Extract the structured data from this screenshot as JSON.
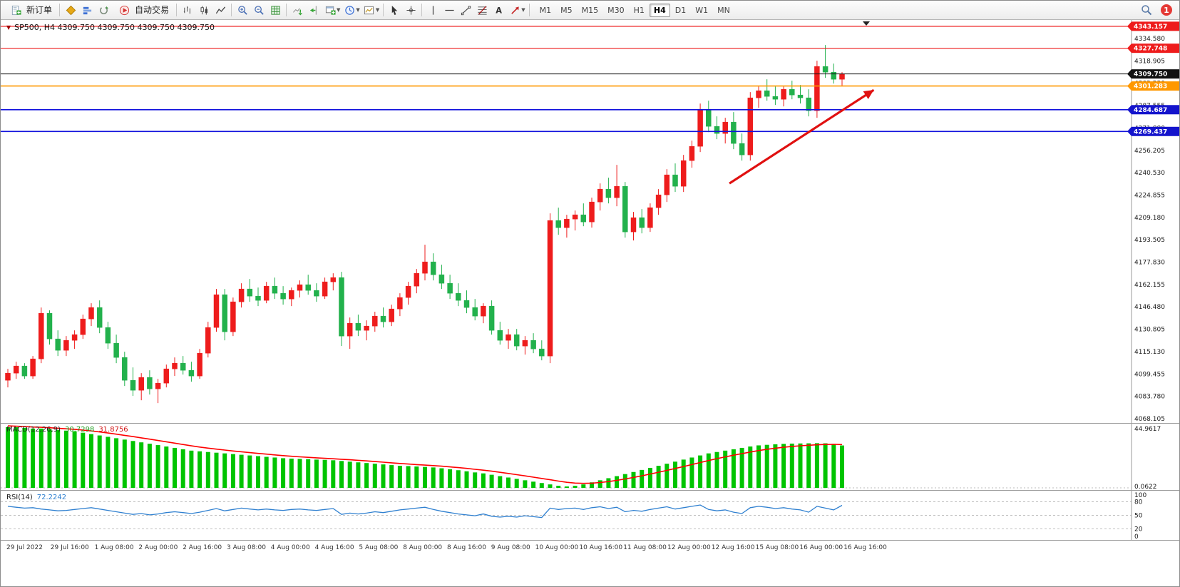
{
  "toolbar": {
    "new_order_label": "新订单",
    "autotrade_label": "自动交易",
    "timeframes": [
      "M1",
      "M5",
      "M15",
      "M30",
      "H1",
      "H4",
      "D1",
      "W1",
      "MN"
    ],
    "active_timeframe": "H4",
    "notification_count": "1"
  },
  "chart_data": {
    "type": "candlestick",
    "symbol": "SP500",
    "timeframe": "H4",
    "ohlc_title": "SP500, H4  4309.750 4309.750 4309.750 4309.750",
    "colors": {
      "up": "#ee1c1c",
      "down": "#22b14c",
      "macd_bar": "#00c400",
      "macd_signal": "#ff0000",
      "rsi": "#2f80d0",
      "line_red": "#ee1c1c",
      "line_orange": "#ff9800",
      "line_blue": "#1212dd",
      "current_price_line": "#111111"
    },
    "price_axis": {
      "ylim": [
        4065.08,
        4346.08
      ],
      "ticks": [
        4334.58,
        4318.905,
        4303.23,
        4287.555,
        4271.88,
        4256.205,
        4240.53,
        4224.855,
        4209.18,
        4193.505,
        4177.83,
        4162.155,
        4146.48,
        4130.805,
        4115.13,
        4099.455,
        4083.78,
        4068.105
      ]
    },
    "hlines": [
      {
        "name": "resistance-upper",
        "price": 4343.157,
        "color": "#ee1c1c",
        "badge": "#ee1c1c",
        "width": 1.2
      },
      {
        "name": "resistance-lower",
        "price": 4327.748,
        "color": "#ee1c1c",
        "badge": "#ee1c1c",
        "width": 1.2
      },
      {
        "name": "current-price",
        "price": 4309.75,
        "color": "#111111",
        "badge": "#111111",
        "width": 1
      },
      {
        "name": "pivot-orange",
        "price": 4301.283,
        "color": "#ff9800",
        "badge": "#ff9800",
        "width": 1.6
      },
      {
        "name": "support-upper",
        "price": 4284.687,
        "color": "#1212dd",
        "badge": "#1414cc",
        "width": 1.6
      },
      {
        "name": "support-lower",
        "price": 4269.437,
        "color": "#1212dd",
        "badge": "#1414cc",
        "width": 1.6
      }
    ],
    "candles": [
      [
        4095,
        4103,
        4090,
        4100
      ],
      [
        4100,
        4108,
        4096,
        4105
      ],
      [
        4105,
        4107,
        4096,
        4098
      ],
      [
        4098,
        4112,
        4096,
        4110
      ],
      [
        4110,
        4146,
        4107,
        4142
      ],
      [
        4142,
        4144,
        4120,
        4124
      ],
      [
        4124,
        4130,
        4112,
        4116
      ],
      [
        4116,
        4126,
        4112,
        4123
      ],
      [
        4123,
        4130,
        4117,
        4127
      ],
      [
        4127,
        4141,
        4124,
        4138
      ],
      [
        4138,
        4149,
        4133,
        4146
      ],
      [
        4146,
        4151,
        4128,
        4132
      ],
      [
        4132,
        4136,
        4117,
        4121
      ],
      [
        4121,
        4127,
        4107,
        4111
      ],
      [
        4111,
        4115,
        4091,
        4095
      ],
      [
        4095,
        4104,
        4084,
        4088
      ],
      [
        4088,
        4100,
        4081,
        4097
      ],
      [
        4097,
        4102,
        4085,
        4089
      ],
      [
        4089,
        4096,
        4079,
        4093
      ],
      [
        4093,
        4106,
        4090,
        4103
      ],
      [
        4103,
        4111,
        4098,
        4107
      ],
      [
        4107,
        4112,
        4099,
        4102
      ],
      [
        4102,
        4108,
        4094,
        4098
      ],
      [
        4098,
        4117,
        4096,
        4114
      ],
      [
        4114,
        4136,
        4111,
        4132
      ],
      [
        4132,
        4159,
        4129,
        4155
      ],
      [
        4155,
        4159,
        4123,
        4129
      ],
      [
        4129,
        4153,
        4126,
        4150
      ],
      [
        4150,
        4163,
        4146,
        4159
      ],
      [
        4159,
        4166,
        4150,
        4154
      ],
      [
        4154,
        4160,
        4147,
        4151
      ],
      [
        4151,
        4164,
        4149,
        4161
      ],
      [
        4161,
        4167,
        4152,
        4156
      ],
      [
        4156,
        4161,
        4148,
        4152
      ],
      [
        4152,
        4160,
        4147,
        4158
      ],
      [
        4158,
        4165,
        4153,
        4162
      ],
      [
        4162,
        4169,
        4155,
        4158
      ],
      [
        4158,
        4163,
        4150,
        4154
      ],
      [
        4154,
        4167,
        4152,
        4164
      ],
      [
        4164,
        4170,
        4158,
        4167
      ],
      [
        4167,
        4171,
        4119,
        4126
      ],
      [
        4126,
        4139,
        4117,
        4135
      ],
      [
        4135,
        4141,
        4126,
        4130
      ],
      [
        4130,
        4137,
        4123,
        4133
      ],
      [
        4133,
        4143,
        4129,
        4140
      ],
      [
        4140,
        4146,
        4132,
        4136
      ],
      [
        4136,
        4148,
        4133,
        4145
      ],
      [
        4145,
        4156,
        4140,
        4153
      ],
      [
        4153,
        4164,
        4148,
        4161
      ],
      [
        4161,
        4173,
        4156,
        4170
      ],
      [
        4170,
        4190,
        4165,
        4178
      ],
      [
        4178,
        4184,
        4165,
        4169
      ],
      [
        4169,
        4176,
        4159,
        4163
      ],
      [
        4163,
        4169,
        4152,
        4156
      ],
      [
        4156,
        4163,
        4147,
        4151
      ],
      [
        4151,
        4158,
        4142,
        4146
      ],
      [
        4146,
        4152,
        4137,
        4140
      ],
      [
        4140,
        4149,
        4135,
        4147
      ],
      [
        4147,
        4151,
        4127,
        4130
      ],
      [
        4130,
        4136,
        4120,
        4123
      ],
      [
        4123,
        4131,
        4117,
        4127
      ],
      [
        4127,
        4131,
        4116,
        4119
      ],
      [
        4119,
        4126,
        4113,
        4123
      ],
      [
        4123,
        4128,
        4114,
        4117
      ],
      [
        4117,
        4123,
        4109,
        4112
      ],
      [
        4112,
        4212,
        4107,
        4207
      ],
      [
        4207,
        4216,
        4197,
        4202
      ],
      [
        4202,
        4211,
        4195,
        4208
      ],
      [
        4208,
        4214,
        4200,
        4211
      ],
      [
        4211,
        4219,
        4203,
        4206
      ],
      [
        4206,
        4223,
        4202,
        4220
      ],
      [
        4220,
        4233,
        4214,
        4229
      ],
      [
        4229,
        4237,
        4219,
        4223
      ],
      [
        4223,
        4246,
        4217,
        4231
      ],
      [
        4231,
        4234,
        4195,
        4199
      ],
      [
        4199,
        4213,
        4193,
        4209
      ],
      [
        4209,
        4215,
        4198,
        4202
      ],
      [
        4202,
        4219,
        4199,
        4216
      ],
      [
        4216,
        4229,
        4211,
        4225
      ],
      [
        4225,
        4243,
        4220,
        4239
      ],
      [
        4239,
        4247,
        4227,
        4231
      ],
      [
        4231,
        4253,
        4227,
        4249
      ],
      [
        4249,
        4263,
        4244,
        4259
      ],
      [
        4259,
        4289,
        4255,
        4285
      ],
      [
        4285,
        4291,
        4269,
        4273
      ],
      [
        4273,
        4280,
        4264,
        4268
      ],
      [
        4268,
        4279,
        4261,
        4276
      ],
      [
        4276,
        4283,
        4257,
        4261
      ],
      [
        4261,
        4268,
        4249,
        4253
      ],
      [
        4253,
        4297,
        4249,
        4293
      ],
      [
        4293,
        4301,
        4286,
        4298
      ],
      [
        4298,
        4306,
        4291,
        4294
      ],
      [
        4294,
        4301,
        4288,
        4292
      ],
      [
        4292,
        4301,
        4287,
        4299
      ],
      [
        4299,
        4305,
        4292,
        4295
      ],
      [
        4295,
        4302,
        4289,
        4293
      ],
      [
        4293,
        4299,
        4280,
        4284
      ],
      [
        4284,
        4319,
        4279,
        4315
      ],
      [
        4315,
        4330,
        4307,
        4311
      ],
      [
        4311,
        4317,
        4303,
        4306
      ],
      [
        4306,
        4311,
        4301,
        4309.75
      ]
    ],
    "time_labels": [
      "29 Jul 2022",
      "29 Jul 16:00",
      "1 Aug 08:00",
      "2 Aug 00:00",
      "2 Aug 16:00",
      "3 Aug 08:00",
      "4 Aug 00:00",
      "4 Aug 16:00",
      "5 Aug 08:00",
      "8 Aug 00:00",
      "8 Aug 16:00",
      "9 Aug 08:00",
      "10 Aug 00:00",
      "10 Aug 16:00",
      "11 Aug 08:00",
      "12 Aug 00:00",
      "12 Aug 16:00",
      "15 Aug 08:00",
      "16 Aug 00:00",
      "16 Aug 16:00"
    ],
    "indicators": {
      "macd": {
        "label": "MACD(12,26,9)",
        "value_main": "30.7298",
        "value_signal": "31.8756",
        "axis_max": "44.9617",
        "axis_min": "0.0622",
        "values": [
          44,
          44,
          43.5,
          43,
          43,
          42.5,
          42,
          41.5,
          41,
          40,
          39,
          38,
          37,
          36,
          35,
          34,
          33,
          32,
          31,
          30,
          29,
          28,
          27,
          26.5,
          26,
          25.5,
          25,
          24.5,
          24,
          23.5,
          23,
          22.5,
          22,
          21.5,
          21.2,
          21,
          20.8,
          20.5,
          20.3,
          20,
          19.5,
          19,
          18.5,
          18,
          17.5,
          17,
          16.5,
          16,
          15.8,
          15.5,
          15.2,
          14.8,
          14.2,
          13.5,
          12.8,
          12,
          11.2,
          10.5,
          9.5,
          8.5,
          7.5,
          6.5,
          5.5,
          4.5,
          3.5,
          2.5,
          1.5,
          1,
          1.5,
          2.5,
          4,
          5.5,
          7,
          8.5,
          10,
          11.5,
          13,
          14.5,
          16,
          17.5,
          19,
          20.5,
          22,
          23.5,
          25,
          26,
          27,
          28,
          29,
          30,
          30.8,
          31.2,
          31.6,
          31.9,
          32.1,
          32.2,
          32.3,
          32.4,
          32.3,
          31.9,
          30.73
        ]
      },
      "rsi": {
        "label": "RSI(14)",
        "value": "72.2242",
        "levels": [
          80,
          50,
          20
        ],
        "axis_labels": [
          "100",
          "80",
          "50",
          "20",
          "0"
        ],
        "values": [
          70,
          68,
          66,
          67,
          64,
          62,
          60,
          61,
          63,
          65,
          67,
          64,
          61,
          58,
          55,
          52,
          54,
          51,
          53,
          56,
          58,
          56,
          54,
          57,
          61,
          65,
          60,
          63,
          66,
          64,
          62,
          64,
          62,
          61,
          63,
          64,
          62,
          61,
          63,
          65,
          52,
          55,
          53,
          55,
          58,
          56,
          59,
          62,
          64,
          66,
          68,
          63,
          59,
          56,
          53,
          51,
          49,
          53,
          48,
          46,
          48,
          46,
          49,
          47,
          45,
          66,
          63,
          65,
          66,
          63,
          67,
          69,
          65,
          68,
          58,
          61,
          59,
          63,
          66,
          69,
          64,
          67,
          70,
          73,
          63,
          60,
          62,
          57,
          54,
          67,
          70,
          68,
          65,
          67,
          64,
          62,
          57,
          70,
          66,
          62,
          72.2242
        ]
      }
    },
    "trend_arrow": {
      "from_index": 86.5,
      "from_price": 4233,
      "to_index": 103.8,
      "to_price": 4298.5,
      "color": "#e01010"
    }
  }
}
